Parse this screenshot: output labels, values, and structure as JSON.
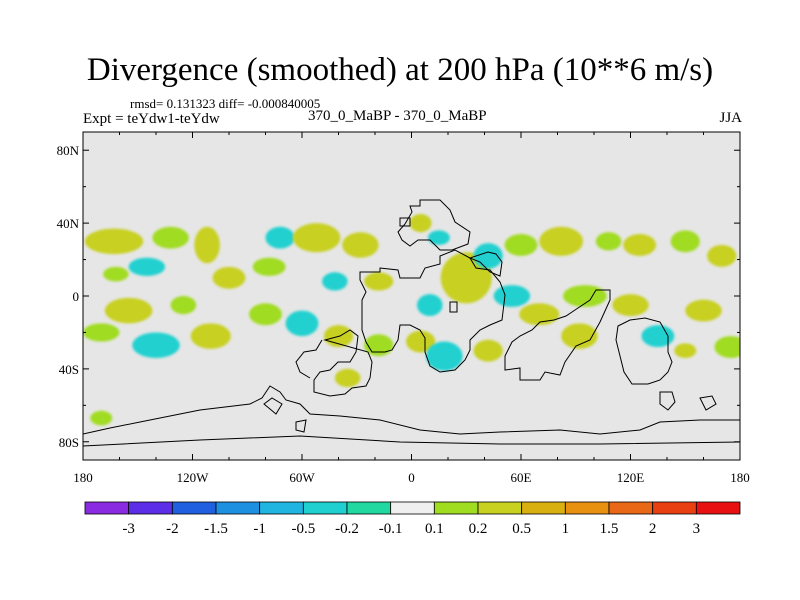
{
  "title": "Divergence (smoothed) at 200 hPa (10**6 m/s)",
  "stats_line": "rmsd= 0.131323 diff= -0.000840005",
  "expt_line": "Expt = teYdw1-teYdw",
  "case_line": "370_0_MaBP - 370_0_MaBP",
  "season": "JJA",
  "colors": {
    "background_field": "#e6e6e6",
    "levels": [
      "#8a2be2",
      "#5d2ee8",
      "#2060e0",
      "#1e90e0",
      "#20b4e0",
      "#20d0d0",
      "#20d8a0",
      "#f0f0f0",
      "#a0dc20",
      "#c8d020",
      "#d8b010",
      "#e89010",
      "#e86818",
      "#e84010",
      "#e81010"
    ]
  },
  "chart_data": {
    "type": "heatmap",
    "title": "Divergence (smoothed) at 200 hPa (10**6 m/s)",
    "x_ticks": [
      "180",
      "120W",
      "60W",
      "0",
      "60E",
      "120E",
      "180"
    ],
    "x_tick_values": [
      -180,
      -120,
      -60,
      0,
      60,
      120,
      180
    ],
    "y_ticks": [
      "80N",
      "40N",
      "0",
      "40S",
      "80S"
    ],
    "y_tick_values": [
      80,
      40,
      0,
      -40,
      -80
    ],
    "xlim": [
      -180,
      180
    ],
    "ylim": [
      -90,
      90
    ],
    "colorbar_labels": [
      "-3",
      "-2",
      "-1.5",
      "-1",
      "-0.5",
      "-0.2",
      "-0.1",
      "0.1",
      "0.2",
      "0.5",
      "1",
      "1.5",
      "2",
      "3"
    ],
    "colorbar_bins": 15,
    "blobs": [
      {
        "lon": -163,
        "lat": 30,
        "a": 16,
        "b": 7,
        "level": 9
      },
      {
        "lon": -132,
        "lat": 32,
        "a": 10,
        "b": 6,
        "level": 8
      },
      {
        "lon": -145,
        "lat": 16,
        "a": 10,
        "b": 5,
        "level": 5
      },
      {
        "lon": -162,
        "lat": 12,
        "a": 7,
        "b": 4,
        "level": 8
      },
      {
        "lon": -112,
        "lat": 28,
        "a": 7,
        "b": 10,
        "level": 9
      },
      {
        "lon": -100,
        "lat": 10,
        "a": 9,
        "b": 6,
        "level": 9
      },
      {
        "lon": -72,
        "lat": 32,
        "a": 8,
        "b": 6,
        "level": 5
      },
      {
        "lon": -52,
        "lat": 32,
        "a": 13,
        "b": 8,
        "level": 9
      },
      {
        "lon": -28,
        "lat": 28,
        "a": 10,
        "b": 7,
        "level": 9
      },
      {
        "lon": -78,
        "lat": 16,
        "a": 9,
        "b": 5,
        "level": 8
      },
      {
        "lon": -42,
        "lat": 8,
        "a": 7,
        "b": 5,
        "level": 5
      },
      {
        "lon": -18,
        "lat": 8,
        "a": 8,
        "b": 5,
        "level": 9
      },
      {
        "lon": -155,
        "lat": -8,
        "a": 13,
        "b": 7,
        "level": 9
      },
      {
        "lon": -170,
        "lat": -20,
        "a": 10,
        "b": 5,
        "level": 8
      },
      {
        "lon": -140,
        "lat": -27,
        "a": 13,
        "b": 7,
        "level": 5
      },
      {
        "lon": -110,
        "lat": -22,
        "a": 11,
        "b": 7,
        "level": 9
      },
      {
        "lon": -125,
        "lat": -5,
        "a": 7,
        "b": 5,
        "level": 8
      },
      {
        "lon": -80,
        "lat": -10,
        "a": 9,
        "b": 6,
        "level": 8
      },
      {
        "lon": -60,
        "lat": -15,
        "a": 9,
        "b": 7,
        "level": 5
      },
      {
        "lon": -40,
        "lat": -22,
        "a": 8,
        "b": 6,
        "level": 9
      },
      {
        "lon": -18,
        "lat": -27,
        "a": 8,
        "b": 6,
        "level": 8
      },
      {
        "lon": -35,
        "lat": -45,
        "a": 7,
        "b": 5,
        "level": 9
      },
      {
        "lon": -170,
        "lat": -67,
        "a": 6,
        "b": 4,
        "level": 8
      },
      {
        "lon": 5,
        "lat": 40,
        "a": 6,
        "b": 5,
        "level": 9
      },
      {
        "lon": 15,
        "lat": 32,
        "a": 6,
        "b": 4,
        "level": 5
      },
      {
        "lon": 30,
        "lat": 10,
        "a": 14,
        "b": 14,
        "level": 9
      },
      {
        "lon": 42,
        "lat": 22,
        "a": 8,
        "b": 7,
        "level": 5
      },
      {
        "lon": 60,
        "lat": 28,
        "a": 9,
        "b": 6,
        "level": 8
      },
      {
        "lon": 82,
        "lat": 30,
        "a": 12,
        "b": 8,
        "level": 9
      },
      {
        "lon": 108,
        "lat": 30,
        "a": 7,
        "b": 5,
        "level": 8
      },
      {
        "lon": 125,
        "lat": 28,
        "a": 9,
        "b": 6,
        "level": 9
      },
      {
        "lon": 150,
        "lat": 30,
        "a": 8,
        "b": 6,
        "level": 8
      },
      {
        "lon": 170,
        "lat": 22,
        "a": 8,
        "b": 6,
        "level": 9
      },
      {
        "lon": 10,
        "lat": -5,
        "a": 7,
        "b": 6,
        "level": 5
      },
      {
        "lon": 5,
        "lat": -25,
        "a": 8,
        "b": 6,
        "level": 9
      },
      {
        "lon": 18,
        "lat": -33,
        "a": 10,
        "b": 8,
        "level": 5
      },
      {
        "lon": 42,
        "lat": -30,
        "a": 8,
        "b": 6,
        "level": 9
      },
      {
        "lon": 55,
        "lat": 0,
        "a": 10,
        "b": 6,
        "level": 5
      },
      {
        "lon": 70,
        "lat": -10,
        "a": 11,
        "b": 6,
        "level": 9
      },
      {
        "lon": 95,
        "lat": 0,
        "a": 12,
        "b": 6,
        "level": 8
      },
      {
        "lon": 92,
        "lat": -22,
        "a": 10,
        "b": 7,
        "level": 9
      },
      {
        "lon": 120,
        "lat": -5,
        "a": 10,
        "b": 6,
        "level": 9
      },
      {
        "lon": 135,
        "lat": -22,
        "a": 9,
        "b": 6,
        "level": 5
      },
      {
        "lon": 160,
        "lat": -8,
        "a": 10,
        "b": 6,
        "level": 9
      },
      {
        "lon": 175,
        "lat": -28,
        "a": 9,
        "b": 6,
        "level": 8
      },
      {
        "lon": 150,
        "lat": -30,
        "a": 6,
        "b": 4,
        "level": 9
      }
    ]
  }
}
